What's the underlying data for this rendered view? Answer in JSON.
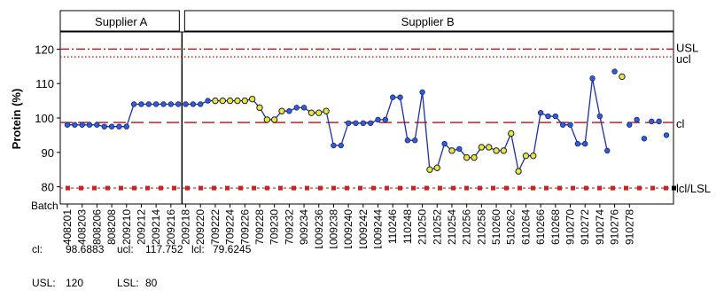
{
  "chart_data": {
    "type": "line",
    "ylabel": "Protein (%)",
    "xlabel": "Batch",
    "ylim": [
      75,
      125
    ],
    "yticks": [
      80,
      90,
      100,
      110,
      120
    ],
    "grid": false,
    "panels": [
      {
        "name": "Supplier A",
        "first_index": 0,
        "last_index": 15
      },
      {
        "name": "Supplier B",
        "first_index": 16,
        "last_index": 73
      }
    ],
    "limits": {
      "usl": {
        "label": "USL",
        "value": 120,
        "color": "#b22222",
        "style": "dashdot"
      },
      "ucl": {
        "label": "ucl",
        "value": 117.752,
        "color": "#cc2222",
        "style": "dotted"
      },
      "cl": {
        "label": "cl",
        "value": 98.6883,
        "color": "#cc2222",
        "style": "dashed"
      },
      "lcl": {
        "label": "lcl/LSL",
        "value": 79.6245,
        "color": "#cc2222",
        "style": "squares"
      }
    },
    "tick_labels": [
      "408201",
      "408203",
      "808206",
      "808208",
      "209210",
      "209212",
      "209214",
      "209216",
      "209218",
      "209220",
      "709222",
      "709224",
      "709226",
      "709228",
      "709230",
      "709232",
      "909234",
      "1009236",
      "1009238",
      "1009240",
      "1009242",
      "1009244",
      "110246",
      "110248",
      "210250",
      "210252",
      "210254",
      "210256",
      "210258",
      "510260",
      "510262",
      "610264",
      "610266",
      "610268",
      "910270",
      "910272",
      "910274",
      "910276",
      "910278"
    ],
    "tick_start_index": 0,
    "tick_step": 2,
    "series": [
      {
        "line_color": "#1c2fa8",
        "marker_color": "#2f5fd0",
        "values": [
          98,
          98,
          98,
          98,
          98,
          97.5,
          97.5,
          97.5,
          97.5,
          104,
          104,
          104,
          104,
          104,
          104,
          104,
          104,
          104,
          104,
          105,
          105,
          105,
          105,
          105,
          105,
          105.5,
          103,
          99.5,
          99.5,
          102,
          102,
          103,
          103,
          101.5,
          101.5,
          102,
          92,
          92,
          98.5,
          98.5,
          98.5,
          98.5,
          99.5,
          99.5,
          106,
          106,
          93.5,
          93.5,
          107.5,
          85,
          85.5,
          92.5,
          90.5,
          91,
          88.5,
          88.5,
          91.5,
          91.5,
          90.5,
          90.5,
          95.5,
          84.5,
          89,
          89,
          101.5,
          100.5,
          100.5,
          98,
          98,
          92.5,
          92.5,
          111.5,
          100.5,
          90.5,
          113.5,
          112,
          98,
          99.5,
          94,
          99,
          99,
          95
        ]
      }
    ],
    "highlighted_points": [
      20,
      21,
      22,
      23,
      24,
      25,
      26,
      27,
      28,
      29,
      33,
      34,
      35,
      49,
      50,
      52,
      54,
      55,
      56,
      57,
      58,
      59,
      60,
      61,
      62,
      63,
      75
    ],
    "highlight_color": "#e8e640"
  },
  "stats": {
    "cl_label": "cl:",
    "cl_value": "98.6883",
    "ucl_label": "ucl:",
    "ucl_value": "117.752",
    "lcl_label": "lcl:",
    "lcl_value": "79.6245",
    "usl_label": "USL:",
    "usl_value": "120",
    "lsl_label": "LSL:",
    "lsl_value": "80"
  }
}
